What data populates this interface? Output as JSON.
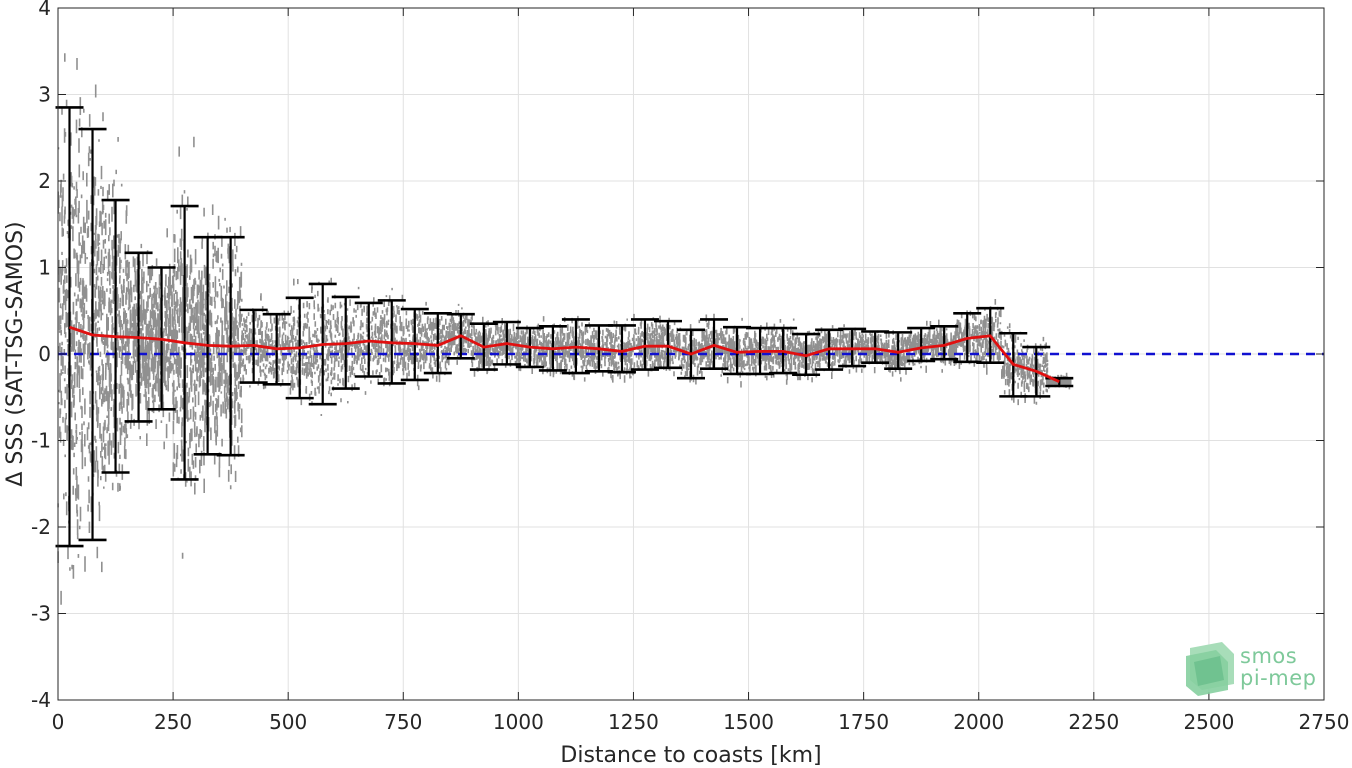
{
  "chart_data": {
    "type": "scatter",
    "xlabel": "Distance to coasts [km]",
    "ylabel": "Δ SSS (SAT-TSG-SAMOS)",
    "xlim": [
      0,
      2750
    ],
    "ylim": [
      -4,
      4
    ],
    "xticks": [
      "0",
      "250",
      "500",
      "750",
      "1000",
      "1250",
      "1500",
      "1750",
      "2000",
      "2250",
      "2500",
      "2750"
    ],
    "yticks": [
      "-4",
      "-3",
      "-2",
      "-1",
      "0",
      "1",
      "2",
      "3",
      "4"
    ],
    "grid": true,
    "zero_line": {
      "y": 0,
      "color": "#1010d0",
      "style": "dashed"
    },
    "colors": {
      "scatter": "#8a8a8a",
      "mean": "#e01010",
      "errorbar": "#000000"
    },
    "bins": [
      {
        "x": 25,
        "mean": 0.31,
        "low": -2.22,
        "high": 2.85
      },
      {
        "x": 75,
        "mean": 0.22,
        "low": -2.15,
        "high": 2.6
      },
      {
        "x": 125,
        "mean": 0.2,
        "low": -1.37,
        "high": 1.78
      },
      {
        "x": 175,
        "mean": 0.19,
        "low": -0.78,
        "high": 1.17
      },
      {
        "x": 225,
        "mean": 0.17,
        "low": -0.64,
        "high": 1.0
      },
      {
        "x": 275,
        "mean": 0.13,
        "low": -1.45,
        "high": 1.71
      },
      {
        "x": 325,
        "mean": 0.1,
        "low": -1.16,
        "high": 1.35
      },
      {
        "x": 375,
        "mean": 0.09,
        "low": -1.17,
        "high": 1.35
      },
      {
        "x": 425,
        "mean": 0.1,
        "low": -0.33,
        "high": 0.51
      },
      {
        "x": 475,
        "mean": 0.06,
        "low": -0.35,
        "high": 0.46
      },
      {
        "x": 525,
        "mean": 0.07,
        "low": -0.51,
        "high": 0.65
      },
      {
        "x": 575,
        "mean": 0.11,
        "low": -0.58,
        "high": 0.81
      },
      {
        "x": 625,
        "mean": 0.12,
        "low": -0.4,
        "high": 0.66
      },
      {
        "x": 675,
        "mean": 0.15,
        "low": -0.26,
        "high": 0.59
      },
      {
        "x": 725,
        "mean": 0.13,
        "low": -0.34,
        "high": 0.62
      },
      {
        "x": 775,
        "mean": 0.12,
        "low": -0.3,
        "high": 0.52
      },
      {
        "x": 825,
        "mean": 0.1,
        "low": -0.22,
        "high": 0.47
      },
      {
        "x": 875,
        "mean": 0.21,
        "low": -0.05,
        "high": 0.46
      },
      {
        "x": 925,
        "mean": 0.08,
        "low": -0.18,
        "high": 0.35
      },
      {
        "x": 975,
        "mean": 0.12,
        "low": -0.12,
        "high": 0.37
      },
      {
        "x": 1025,
        "mean": 0.08,
        "low": -0.15,
        "high": 0.3
      },
      {
        "x": 1075,
        "mean": 0.06,
        "low": -0.19,
        "high": 0.32
      },
      {
        "x": 1125,
        "mean": 0.08,
        "low": -0.22,
        "high": 0.4
      },
      {
        "x": 1175,
        "mean": 0.06,
        "low": -0.2,
        "high": 0.33
      },
      {
        "x": 1225,
        "mean": 0.03,
        "low": -0.21,
        "high": 0.33
      },
      {
        "x": 1275,
        "mean": 0.09,
        "low": -0.18,
        "high": 0.4
      },
      {
        "x": 1325,
        "mean": 0.09,
        "low": -0.16,
        "high": 0.38
      },
      {
        "x": 1375,
        "mean": 0.0,
        "low": -0.28,
        "high": 0.28
      },
      {
        "x": 1425,
        "mean": 0.1,
        "low": -0.17,
        "high": 0.4
      },
      {
        "x": 1475,
        "mean": 0.02,
        "low": -0.23,
        "high": 0.31
      },
      {
        "x": 1525,
        "mean": 0.03,
        "low": -0.23,
        "high": 0.3
      },
      {
        "x": 1575,
        "mean": 0.03,
        "low": -0.22,
        "high": 0.3
      },
      {
        "x": 1625,
        "mean": -0.02,
        "low": -0.24,
        "high": 0.23
      },
      {
        "x": 1675,
        "mean": 0.06,
        "low": -0.18,
        "high": 0.28
      },
      {
        "x": 1725,
        "mean": 0.06,
        "low": -0.14,
        "high": 0.29
      },
      {
        "x": 1775,
        "mean": 0.06,
        "low": -0.1,
        "high": 0.26
      },
      {
        "x": 1825,
        "mean": 0.02,
        "low": -0.17,
        "high": 0.25
      },
      {
        "x": 1875,
        "mean": 0.07,
        "low": -0.08,
        "high": 0.3
      },
      {
        "x": 1925,
        "mean": 0.1,
        "low": -0.06,
        "high": 0.32
      },
      {
        "x": 1975,
        "mean": 0.18,
        "low": -0.09,
        "high": 0.47
      },
      {
        "x": 2025,
        "mean": 0.21,
        "low": -0.1,
        "high": 0.53
      },
      {
        "x": 2075,
        "mean": -0.12,
        "low": -0.49,
        "high": 0.24
      },
      {
        "x": 2125,
        "mean": -0.2,
        "low": -0.49,
        "high": 0.08
      },
      {
        "x": 2175,
        "mean": -0.32,
        "low": -0.37,
        "high": -0.28
      }
    ]
  },
  "logo": {
    "line1": "smos",
    "line2": "pi-mep"
  }
}
